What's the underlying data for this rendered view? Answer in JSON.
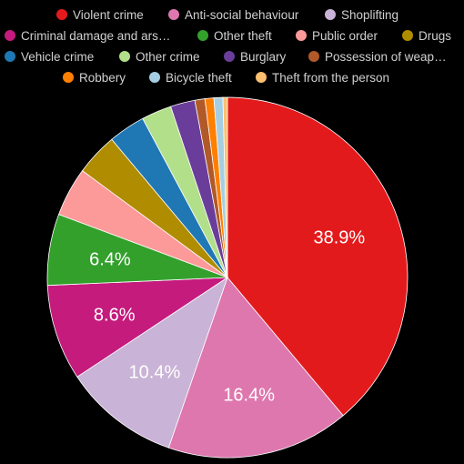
{
  "chart_data": {
    "type": "pie",
    "title": "",
    "legend_position": "top",
    "slices": [
      {
        "label": "Violent crime",
        "value": 38.9,
        "color": "#e31a1c",
        "show_pct": "38.9%"
      },
      {
        "label": "Anti-social behaviour",
        "value": 16.4,
        "color": "#de77ae",
        "show_pct": "16.4%"
      },
      {
        "label": "Shoplifting",
        "value": 10.4,
        "color": "#c9b3d6",
        "show_pct": "10.4%"
      },
      {
        "label": "Criminal damage and ars…",
        "value": 8.6,
        "color": "#c51b7d",
        "show_pct": "8.6%"
      },
      {
        "label": "Other theft",
        "value": 6.4,
        "color": "#33a02c",
        "show_pct": "6.4%"
      },
      {
        "label": "Public order",
        "value": 4.4,
        "color": "#fb9a99",
        "show_pct": ""
      },
      {
        "label": "Drugs",
        "value": 3.8,
        "color": "#b08c00",
        "show_pct": ""
      },
      {
        "label": "Vehicle crime",
        "value": 3.3,
        "color": "#1f78b4",
        "show_pct": ""
      },
      {
        "label": "Other crime",
        "value": 2.7,
        "color": "#b2df8a",
        "show_pct": ""
      },
      {
        "label": "Burglary",
        "value": 2.2,
        "color": "#6a3d9a",
        "show_pct": ""
      },
      {
        "label": "Possession of weap…",
        "value": 0.9,
        "color": "#b15928",
        "show_pct": ""
      },
      {
        "label": "Robbery",
        "value": 0.8,
        "color": "#ff7f00",
        "show_pct": ""
      },
      {
        "label": "Bicycle theft",
        "value": 0.8,
        "color": "#a6cee3",
        "show_pct": ""
      },
      {
        "label": "Theft from the person",
        "value": 0.4,
        "color": "#fdbf6f",
        "show_pct": ""
      }
    ]
  }
}
